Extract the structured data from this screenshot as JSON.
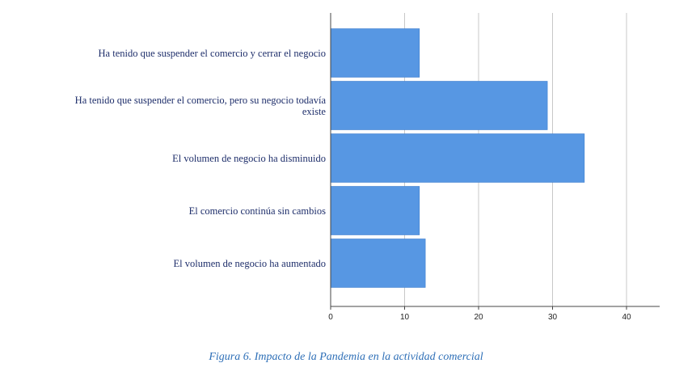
{
  "chart_data": {
    "type": "bar",
    "orientation": "horizontal",
    "categories": [
      "Ha tenido que suspender el comercio y cerrar el negocio",
      "Ha tenido que suspender el comercio, pero su negocio todavía\nexiste",
      "El volumen de negocio ha disminuido",
      "El comercio continúa sin cambios",
      "El volumen de negocio ha aumentado"
    ],
    "values": [
      12,
      29.3,
      34.3,
      12,
      12.8
    ],
    "xticks": [
      "0",
      "10",
      "20",
      "30",
      "40"
    ],
    "xlim": [
      0,
      44.5
    ],
    "grid": "vertical",
    "bar_color": "#5797e3"
  },
  "caption": "Figura 6. Impacto de la Pandemia en la actividad comercial"
}
